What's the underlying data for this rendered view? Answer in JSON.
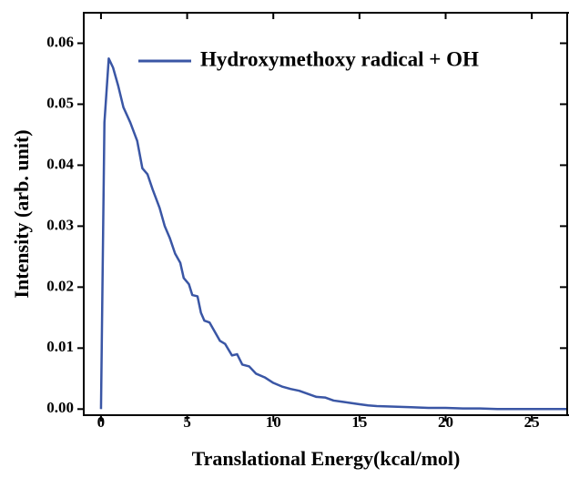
{
  "chart_data": {
    "type": "line",
    "xlabel": "Translational Energy(kcal/mol)",
    "ylabel": "Intensity (arb. unit)",
    "xlim": [
      -1,
      27
    ],
    "ylim": [
      -0.001,
      0.065
    ],
    "xticks": [
      0,
      5,
      10,
      15,
      20,
      25
    ],
    "yticks": [
      {
        "value": 0,
        "label": "0.00"
      },
      {
        "value": 0.01,
        "label": "0.01"
      },
      {
        "value": 0.02,
        "label": "0.02"
      },
      {
        "value": 0.03,
        "label": "0.03"
      },
      {
        "value": 0.04,
        "label": "0.04"
      },
      {
        "value": 0.05,
        "label": "0.05"
      },
      {
        "value": 0.06,
        "label": "0.06"
      }
    ],
    "legend": "upper right",
    "x": [
      0,
      0.2,
      0.45,
      0.7,
      1.0,
      1.3,
      1.7,
      2.1,
      2.4,
      2.7,
      3.0,
      3.4,
      3.7,
      4.0,
      4.3,
      4.6,
      4.8,
      5.1,
      5.3,
      5.6,
      5.8,
      6.0,
      6.3,
      6.6,
      6.9,
      7.2,
      7.6,
      7.9,
      8.2,
      8.6,
      9.0,
      9.5,
      10,
      10.5,
      11,
      11.5,
      12,
      12.5,
      13,
      13.5,
      14,
      14.5,
      15,
      15.5,
      16,
      17,
      18,
      19,
      20,
      21,
      22,
      23,
      24,
      25,
      26,
      27
    ],
    "series": [
      {
        "name": "Hydroxymethoxy radical + OH",
        "color": "#3a56a5",
        "values": [
          0,
          0.047,
          0.0575,
          0.056,
          0.053,
          0.0495,
          0.047,
          0.044,
          0.0395,
          0.0385,
          0.036,
          0.033,
          0.03,
          0.028,
          0.0255,
          0.024,
          0.0215,
          0.0205,
          0.0187,
          0.0185,
          0.0158,
          0.0145,
          0.0142,
          0.0127,
          0.0112,
          0.0107,
          0.0088,
          0.009,
          0.0073,
          0.007,
          0.0058,
          0.0052,
          0.0043,
          0.0037,
          0.0033,
          0.003,
          0.0025,
          0.002,
          0.0019,
          0.0014,
          0.0012,
          0.001,
          0.0008,
          0.0006,
          0.0005,
          0.0004,
          0.0003,
          0.0002,
          0.0002,
          0.0001,
          0.0001,
          0,
          0,
          0,
          0,
          0
        ]
      }
    ]
  }
}
